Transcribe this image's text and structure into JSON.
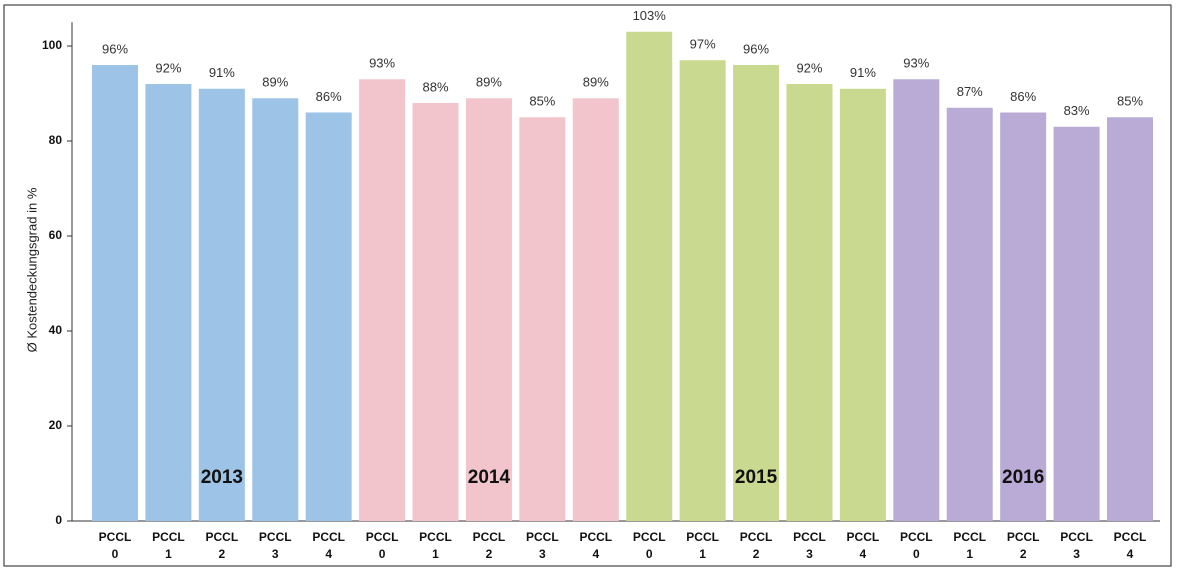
{
  "chart_data": {
    "type": "bar",
    "y_label": "Ø Kostendeckungsgrad in %",
    "categories": [
      "PCCL 0",
      "PCCL 1",
      "PCCL 2",
      "PCCL 3",
      "PCCL 4"
    ],
    "series": [
      {
        "name": "2013",
        "color": "#9dc3e6",
        "values": [
          96,
          92,
          91,
          89,
          86
        ],
        "value_labels": [
          "96%",
          "92%",
          "91%",
          "89%",
          "86%"
        ]
      },
      {
        "name": "2014",
        "color": "#f2c5cd",
        "values": [
          93,
          88,
          89,
          85,
          89
        ],
        "value_labels": [
          "93%",
          "88%",
          "89%",
          "85%",
          "89%"
        ]
      },
      {
        "name": "2015",
        "color": "#c9d990",
        "values": [
          103,
          97,
          96,
          92,
          91
        ],
        "value_labels": [
          "103%",
          "97%",
          "96%",
          "92%",
          "91%"
        ]
      },
      {
        "name": "2016",
        "color": "#b9abd6",
        "values": [
          93,
          87,
          86,
          83,
          85
        ],
        "value_labels": [
          "93%",
          "87%",
          "86%",
          "83%",
          "85%"
        ]
      }
    ],
    "ylim": [
      0,
      105
    ],
    "yticks": [
      0,
      20,
      40,
      60,
      80,
      100
    ],
    "grid": false
  }
}
